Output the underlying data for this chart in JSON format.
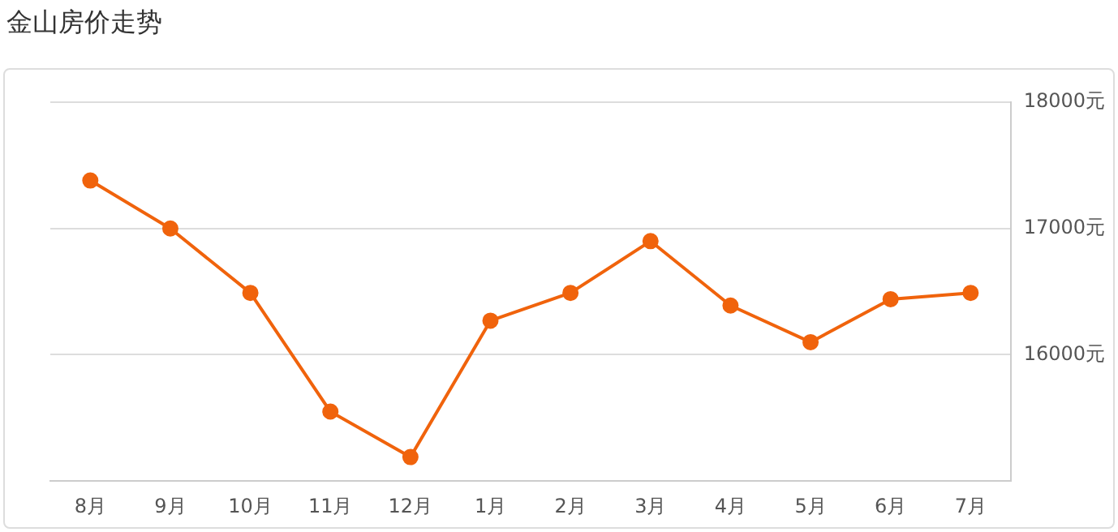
{
  "chart_data": {
    "type": "line",
    "title": "金山房价走势",
    "categories": [
      "8月",
      "9月",
      "10月",
      "11月",
      "12月",
      "1月",
      "2月",
      "3月",
      "4月",
      "5月",
      "6月",
      "7月"
    ],
    "series": [
      {
        "color": "#f0630c",
        "values": [
          17380,
          17000,
          16490,
          15550,
          15190,
          16270,
          16490,
          16900,
          16390,
          16100,
          16440,
          16490
        ]
      }
    ],
    "ylim": [
      15000,
      18000
    ],
    "yticks": [
      {
        "value": 15000,
        "label": null
      },
      {
        "value": 16000,
        "label": "16000元"
      },
      {
        "value": 17000,
        "label": "17000元"
      },
      {
        "value": 18000,
        "label": "18000元"
      }
    ],
    "grid": "y",
    "legend": false,
    "marker": "circle",
    "line_style": "solid"
  }
}
